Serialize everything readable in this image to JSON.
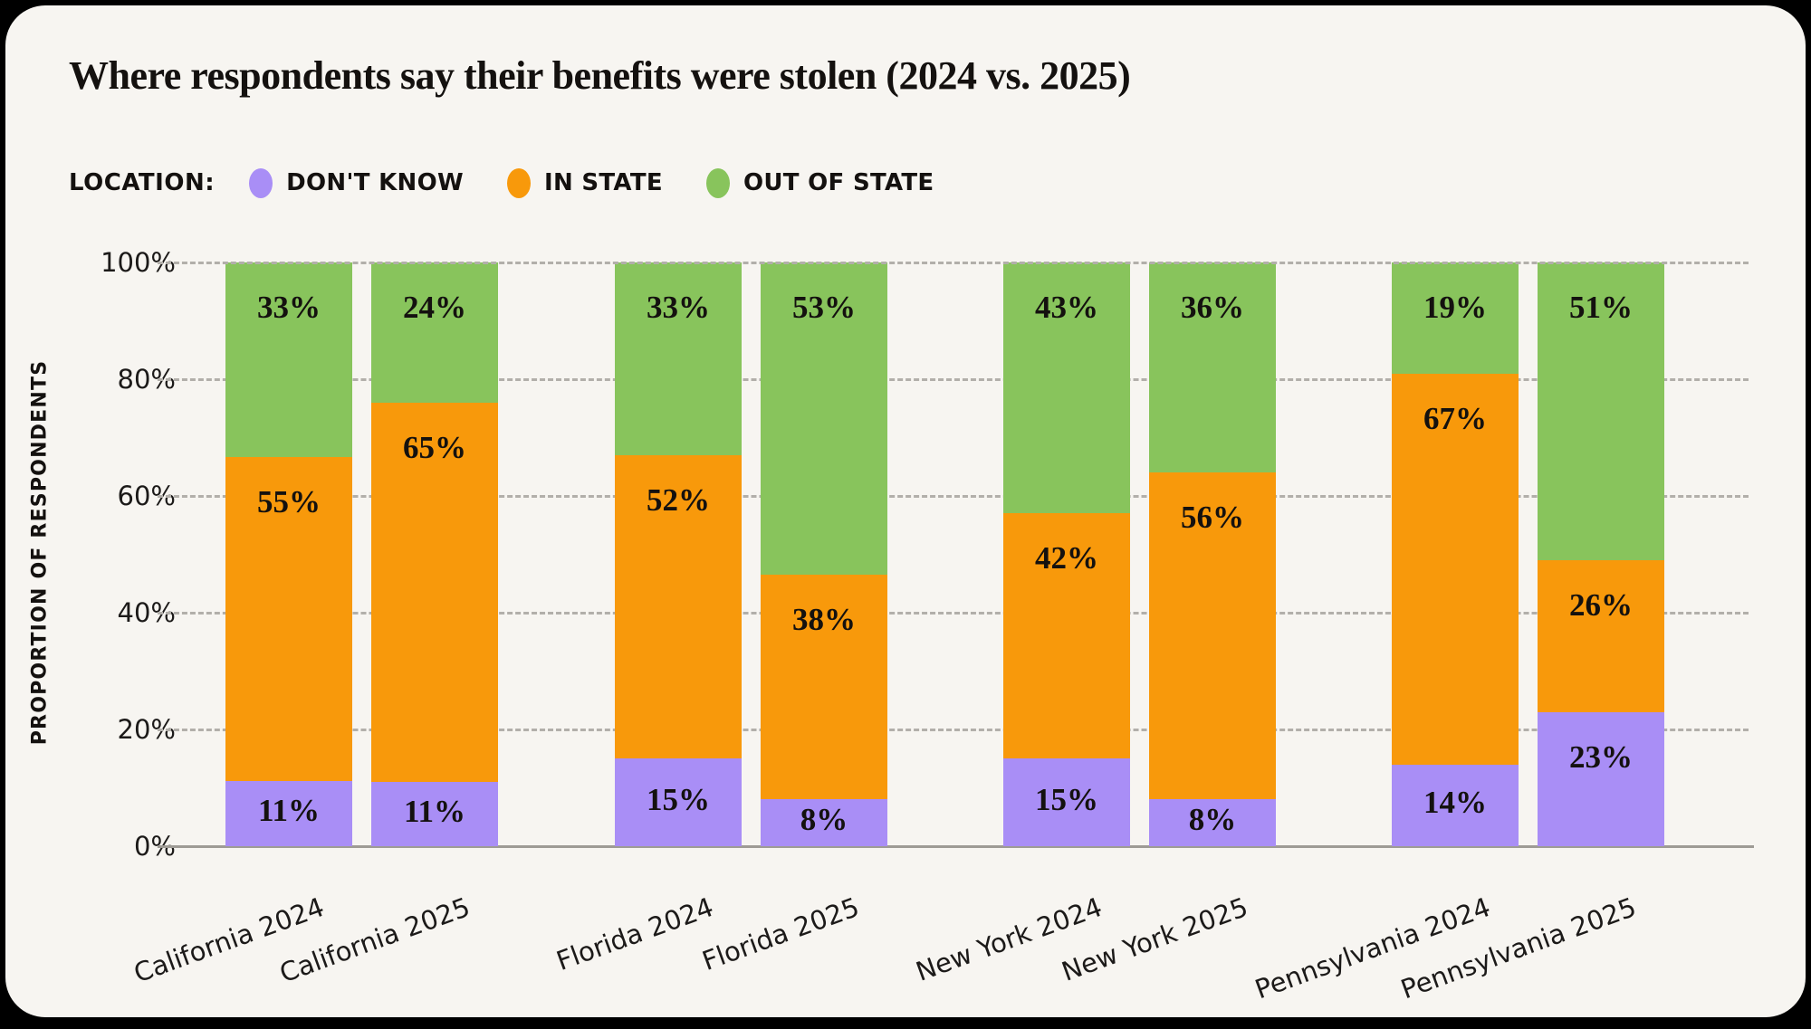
{
  "frame": {
    "background": "#000000",
    "panel_background": "#f7f5f1"
  },
  "title": "Where respondents say their benefits were stolen (2024 vs. 2025)",
  "legend": {
    "label": "LOCATION:",
    "items": [
      {
        "name": "DON'T KNOW",
        "color": "#a98ef6"
      },
      {
        "name": "IN STATE",
        "color": "#f8990b"
      },
      {
        "name": "OUT OF STATE",
        "color": "#88c45c"
      }
    ]
  },
  "chart_data": {
    "type": "bar",
    "stacked": true,
    "normalized_to_100": true,
    "title": "Where respondents say their benefits were stolen (2024 vs. 2025)",
    "ylabel": "PROPORTION OF RESPONDENTS",
    "xlabel": "",
    "ylim": [
      0,
      100
    ],
    "yticks": [
      "0%",
      "20%",
      "40%",
      "60%",
      "80%",
      "100%"
    ],
    "grid": "horizontal-dashed",
    "legend_position": "top-left",
    "value_label_suffix": "%",
    "categories": [
      "California 2024",
      "California 2025",
      "Florida 2024",
      "Florida 2025",
      "New York 2024",
      "New York 2025",
      "Pennsylvania 2024",
      "Pennsylvania 2025"
    ],
    "series": [
      {
        "name": "DON'T KNOW",
        "color": "#a98ef6",
        "values": [
          11,
          11,
          15,
          8,
          15,
          8,
          14,
          23
        ]
      },
      {
        "name": "IN STATE",
        "color": "#f8990b",
        "values": [
          55,
          65,
          52,
          38,
          42,
          56,
          67,
          26
        ]
      },
      {
        "name": "OUT OF STATE",
        "color": "#88c45c",
        "values": [
          33,
          24,
          33,
          53,
          43,
          36,
          19,
          51
        ]
      }
    ]
  }
}
